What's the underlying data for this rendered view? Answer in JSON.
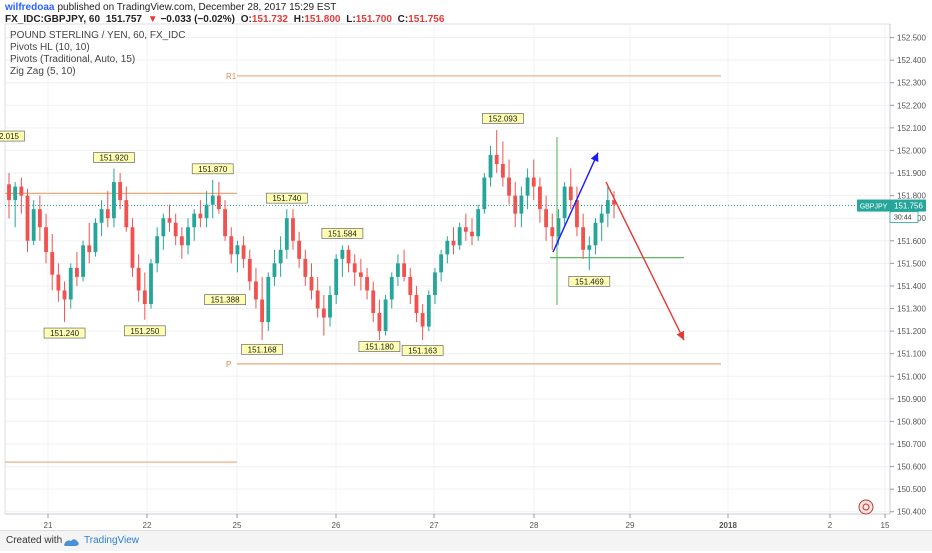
{
  "header": {
    "author": "wilfredoaa",
    "published_text": "published on TradingView.com, December 28, 2017 15:29 EST",
    "symbol": "FX_IDC:GBPJPY, 60",
    "last": "151.757",
    "change_arrow": "▼",
    "change": "−0.033 (−0.02%)",
    "open_label": "O:",
    "open": "151.732",
    "high_label": "H:",
    "high": "151.800",
    "low_label": "L:",
    "low": "151.700",
    "close_label": "C:",
    "close": "151.756"
  },
  "legend": {
    "title": "POUND STERLING / YEN, 60, FX_IDC",
    "studies": [
      "Pivots HL (10, 10)",
      "Pivots (Traditional, Auto, 15)",
      "Zig Zag (5, 10)"
    ]
  },
  "price_badge": {
    "symbol": "GBPJPY",
    "price": "151.756",
    "countdown": "30:44"
  },
  "footer": {
    "created_with": "Created with",
    "brand": "TradingView"
  },
  "colors": {
    "up": "#26a69a",
    "down": "#ef5350",
    "pivot_line": "#e8a878",
    "arrow_up": "#1a1aff",
    "arrow_down": "#e53935",
    "support": "#4caf50",
    "grid": "#eef0f3",
    "badge": "#26a69a"
  },
  "chart_data": {
    "type": "candlestick",
    "ylim": [
      150.39,
      152.56
    ],
    "y_ticks": [
      "152.500",
      "152.400",
      "152.300",
      "152.200",
      "152.100",
      "152.000",
      "151.900",
      "151.800",
      "151.700",
      "151.600",
      "151.500",
      "151.400",
      "151.300",
      "151.200",
      "151.100",
      "151.000",
      "150.900",
      "150.800",
      "150.700",
      "150.600",
      "150.500",
      "150.400"
    ],
    "x_ticks": [
      "21",
      "22",
      "25",
      "26",
      "27",
      "28",
      "29",
      "2018",
      "2",
      "15"
    ],
    "candles": [
      [
        151.85,
        151.9,
        151.7,
        151.78
      ],
      [
        151.78,
        151.86,
        151.66,
        151.84
      ],
      [
        151.84,
        151.88,
        151.72,
        151.8
      ],
      [
        151.8,
        151.83,
        151.55,
        151.6
      ],
      [
        151.6,
        151.78,
        151.58,
        151.74
      ],
      [
        151.74,
        151.8,
        151.6,
        151.66
      ],
      [
        151.66,
        151.72,
        151.5,
        151.55
      ],
      [
        151.55,
        151.63,
        151.38,
        151.45
      ],
      [
        151.45,
        151.5,
        151.33,
        151.38
      ],
      [
        151.38,
        151.42,
        151.24,
        151.34
      ],
      [
        151.34,
        151.5,
        151.3,
        151.48
      ],
      [
        151.48,
        151.55,
        151.4,
        151.44
      ],
      [
        151.44,
        151.6,
        151.42,
        151.58
      ],
      [
        151.58,
        151.68,
        151.5,
        151.55
      ],
      [
        151.55,
        151.7,
        151.53,
        151.68
      ],
      [
        151.68,
        151.78,
        151.62,
        151.74
      ],
      [
        151.74,
        151.82,
        151.66,
        151.7
      ],
      [
        151.7,
        151.92,
        151.66,
        151.86
      ],
      [
        151.86,
        151.9,
        151.74,
        151.78
      ],
      [
        151.78,
        151.84,
        151.64,
        151.66
      ],
      [
        151.66,
        151.7,
        151.44,
        151.48
      ],
      [
        151.48,
        151.54,
        151.33,
        151.38
      ],
      [
        151.38,
        151.46,
        151.25,
        151.32
      ],
      [
        151.32,
        151.52,
        151.3,
        151.5
      ],
      [
        151.5,
        151.66,
        151.46,
        151.62
      ],
      [
        151.62,
        151.72,
        151.56,
        151.7
      ],
      [
        151.7,
        151.76,
        151.64,
        151.68
      ],
      [
        151.68,
        151.72,
        151.58,
        151.62
      ],
      [
        151.62,
        151.66,
        151.52,
        151.58
      ],
      [
        151.58,
        151.7,
        151.54,
        151.66
      ],
      [
        151.66,
        151.74,
        151.6,
        151.72
      ],
      [
        151.72,
        151.78,
        151.66,
        151.7
      ],
      [
        151.7,
        151.82,
        151.66,
        151.76
      ],
      [
        151.76,
        151.87,
        151.7,
        151.8
      ],
      [
        151.8,
        151.86,
        151.72,
        151.74
      ],
      [
        151.74,
        151.78,
        151.6,
        151.62
      ],
      [
        151.62,
        151.66,
        151.5,
        151.54
      ],
      [
        151.54,
        151.6,
        151.46,
        151.58
      ],
      [
        151.58,
        151.62,
        151.48,
        151.52
      ],
      [
        151.52,
        151.56,
        151.38,
        151.42
      ],
      [
        151.42,
        151.48,
        151.3,
        151.34
      ],
      [
        151.34,
        151.44,
        151.16,
        151.24
      ],
      [
        151.24,
        151.46,
        151.2,
        151.44
      ],
      [
        151.44,
        151.56,
        151.4,
        151.5
      ],
      [
        151.5,
        151.62,
        151.44,
        151.56
      ],
      [
        151.56,
        151.74,
        151.52,
        151.7
      ],
      [
        151.7,
        151.74,
        151.56,
        151.6
      ],
      [
        151.6,
        151.64,
        151.48,
        151.52
      ],
      [
        151.52,
        151.56,
        151.4,
        151.44
      ],
      [
        151.44,
        151.5,
        151.34,
        151.38
      ],
      [
        151.38,
        151.44,
        151.26,
        151.3
      ],
      [
        151.3,
        151.36,
        151.18,
        151.26
      ],
      [
        151.26,
        151.4,
        151.22,
        151.36
      ],
      [
        151.36,
        151.54,
        151.32,
        151.52
      ],
      [
        151.52,
        151.58,
        151.44,
        151.56
      ],
      [
        151.56,
        151.58,
        151.46,
        151.5
      ],
      [
        151.5,
        151.54,
        151.4,
        151.46
      ],
      [
        151.46,
        151.52,
        151.38,
        151.44
      ],
      [
        151.44,
        151.48,
        151.34,
        151.38
      ],
      [
        151.38,
        151.42,
        151.24,
        151.28
      ],
      [
        151.28,
        151.34,
        151.16,
        151.2
      ],
      [
        151.2,
        151.36,
        151.18,
        151.34
      ],
      [
        151.34,
        151.46,
        151.3,
        151.44
      ],
      [
        151.44,
        151.54,
        151.4,
        151.5
      ],
      [
        151.5,
        151.56,
        151.42,
        151.44
      ],
      [
        151.44,
        151.48,
        151.32,
        151.36
      ],
      [
        151.36,
        151.4,
        151.24,
        151.28
      ],
      [
        151.28,
        151.32,
        151.16,
        151.22
      ],
      [
        151.22,
        151.38,
        151.2,
        151.36
      ],
      [
        151.36,
        151.48,
        151.32,
        151.46
      ],
      [
        151.46,
        151.56,
        151.42,
        151.54
      ],
      [
        151.54,
        151.62,
        151.5,
        151.6
      ],
      [
        151.6,
        151.66,
        151.54,
        151.58
      ],
      [
        151.58,
        151.68,
        151.56,
        151.66
      ],
      [
        151.66,
        151.72,
        151.6,
        151.64
      ],
      [
        151.64,
        151.7,
        151.58,
        151.62
      ],
      [
        151.62,
        151.76,
        151.6,
        151.74
      ],
      [
        151.74,
        151.9,
        151.72,
        151.88
      ],
      [
        151.88,
        152.02,
        151.84,
        151.98
      ],
      [
        151.98,
        152.09,
        151.9,
        151.94
      ],
      [
        151.94,
        152.04,
        151.84,
        151.88
      ],
      [
        151.88,
        151.96,
        151.76,
        151.8
      ],
      [
        151.8,
        151.86,
        151.66,
        151.72
      ],
      [
        151.72,
        151.84,
        151.66,
        151.8
      ],
      [
        151.8,
        151.92,
        151.74,
        151.88
      ],
      [
        151.88,
        151.96,
        151.78,
        151.84
      ],
      [
        151.84,
        151.88,
        151.68,
        151.74
      ],
      [
        151.74,
        151.8,
        151.6,
        151.66
      ],
      [
        151.66,
        151.72,
        151.56,
        151.62
      ],
      [
        151.62,
        151.74,
        151.58,
        151.7
      ],
      [
        151.7,
        151.86,
        151.66,
        151.84
      ],
      [
        151.84,
        151.92,
        151.74,
        151.78
      ],
      [
        151.78,
        151.84,
        151.62,
        151.66
      ],
      [
        151.66,
        151.72,
        151.52,
        151.56
      ],
      [
        151.56,
        151.62,
        151.47,
        151.58
      ],
      [
        151.58,
        151.7,
        151.54,
        151.68
      ],
      [
        151.68,
        151.76,
        151.6,
        151.72
      ],
      [
        151.72,
        151.84,
        151.66,
        151.78
      ],
      [
        151.78,
        151.82,
        151.7,
        151.76
      ]
    ],
    "pivot_labels": [
      {
        "text": "2.015",
        "price": 152.015,
        "index": 0,
        "pos": "high"
      },
      {
        "text": "151.920",
        "price": 151.92,
        "index": 17,
        "pos": "high"
      },
      {
        "text": "151.870",
        "price": 151.87,
        "index": 33,
        "pos": "high"
      },
      {
        "text": "151.740",
        "price": 151.74,
        "index": 45,
        "pos": "high"
      },
      {
        "text": "151.584",
        "price": 151.584,
        "index": 54,
        "pos": "high"
      },
      {
        "text": "152.093",
        "price": 152.093,
        "index": 80,
        "pos": "high"
      },
      {
        "text": "151.240",
        "price": 151.24,
        "index": 9,
        "pos": "low"
      },
      {
        "text": "151.250",
        "price": 151.25,
        "index": 22,
        "pos": "low"
      },
      {
        "text": "151.388",
        "price": 151.388,
        "index": 35,
        "pos": "low"
      },
      {
        "text": "151.168",
        "price": 151.168,
        "index": 41,
        "pos": "low"
      },
      {
        "text": "151.180",
        "price": 151.18,
        "index": 60,
        "pos": "low"
      },
      {
        "text": "151.163",
        "price": 151.163,
        "index": 67,
        "pos": "low"
      },
      {
        "text": "151.469",
        "price": 151.469,
        "index": 94,
        "pos": "low"
      }
    ],
    "pivot_levels": [
      {
        "name": "R1",
        "price": 152.33
      },
      {
        "name": "P",
        "price": 151.055
      }
    ],
    "horizontal_lines": [
      {
        "price": 151.81
      },
      {
        "price": 150.62
      },
      {
        "price": 151.525
      }
    ],
    "projection": {
      "up_from": 151.55,
      "up_to": 151.99,
      "down_to": 151.16
    },
    "current_price": 151.756
  }
}
